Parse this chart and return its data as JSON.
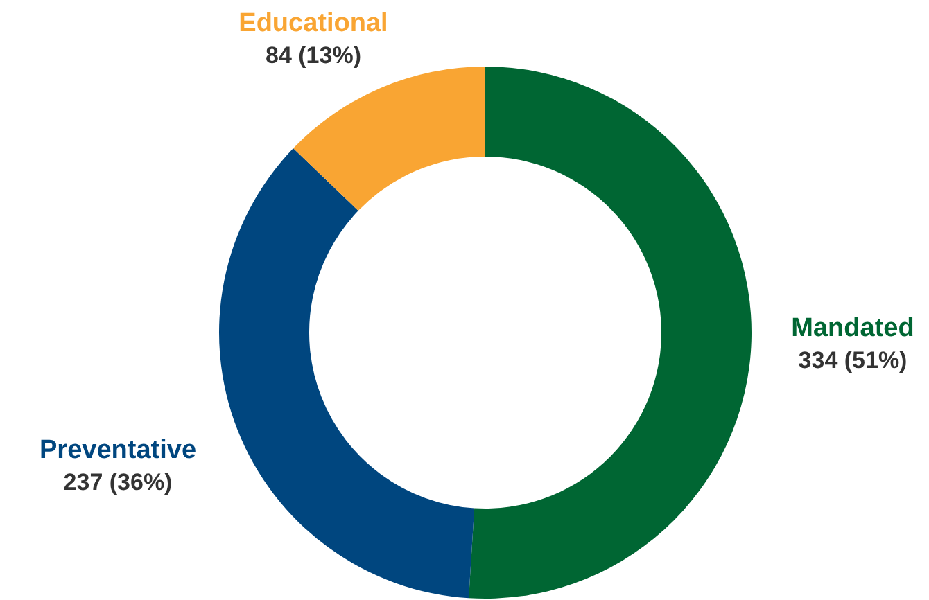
{
  "chart_data": {
    "type": "donut",
    "categories": [
      "Mandated",
      "Preventative",
      "Educational"
    ],
    "values": [
      334,
      237,
      84
    ],
    "colors": [
      "#006633",
      "#00467f",
      "#f9a533"
    ],
    "value_labels": [
      "334 (51%)",
      "237 (36%)",
      "84 (13%)"
    ],
    "legend": false
  }
}
